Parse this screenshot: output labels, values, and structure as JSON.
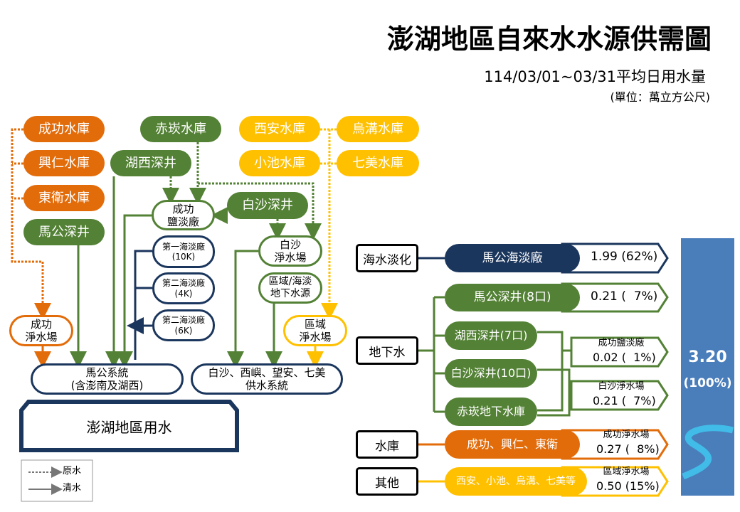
{
  "title": "澎湖地區自來水水源供需圖",
  "period": "114/03/01~03/31平均日用水量",
  "unit": "(單位：萬立方公尺)",
  "colors": {
    "reservoir": "#e36c0a",
    "groundwater": "#538135",
    "other": "#ffc000",
    "desalination": "#1b365d",
    "total": "#4a7ebb"
  },
  "flow": {
    "chenggong_res": "成功水庫",
    "xingren_res": "興仁水庫",
    "dongwei_res": "東衛水庫",
    "magong_well": "馬公深井",
    "chikan_res": "赤崁水庫",
    "huxi_well": "湖西深井",
    "xian_res": "西安水庫",
    "xiaochi_res": "小池水庫",
    "wugou_res": "烏溝水庫",
    "qimei_res": "七美水庫",
    "chenggong_brackish": "成功\n鹽淡廠",
    "baisha_well": "白沙深井",
    "desal1": "第一海淡廠\n(10K)",
    "desal2": "第二海淡廠\n(4K)",
    "desal3": "第二海淡廠\n(6K)",
    "baisha_plant": "白沙\n淨水場",
    "regional_source": "區域/海淡\n地下水源",
    "chenggong_plant": "成功\n淨水場",
    "regional_plant": "區域\n淨水場",
    "magong_system": "馬公系統\n(含澎南及湖西)",
    "north_system": "白沙、西嶼、望安、七美\n供水系統",
    "penghu_use": "澎湖地區用水"
  },
  "legend": {
    "raw": "原水",
    "clean": "清水"
  },
  "supply": {
    "categories": [
      "海水淡化",
      "地下水",
      "水庫",
      "其他"
    ],
    "desal": {
      "name": "馬公海淡廠",
      "value": "1.99 (62%)"
    },
    "magong_well": {
      "name": "馬公深井(8口)",
      "value": "0.21 (  7%)"
    },
    "huxi_well": "湖西深井(7口)",
    "baisha_well": "白沙深井(10口)",
    "chikan_ground": "赤崁地下水庫",
    "chenggong_brackish": {
      "name": "成功鹽淡廠",
      "value": "0.02 (  1%)"
    },
    "baisha_plant": {
      "name": "白沙淨水場",
      "value": "0.21 (  7%)"
    },
    "reservoir": {
      "sources": "成功、興仁、東衛",
      "name": "成功淨水場",
      "value": "0.27 (  8%)"
    },
    "other": {
      "sources": "西安、小池、烏溝、七美等",
      "name": "區域淨水場",
      "value": "0.50 (15%)"
    },
    "total": "3.20",
    "total_pct": "(100%)"
  }
}
